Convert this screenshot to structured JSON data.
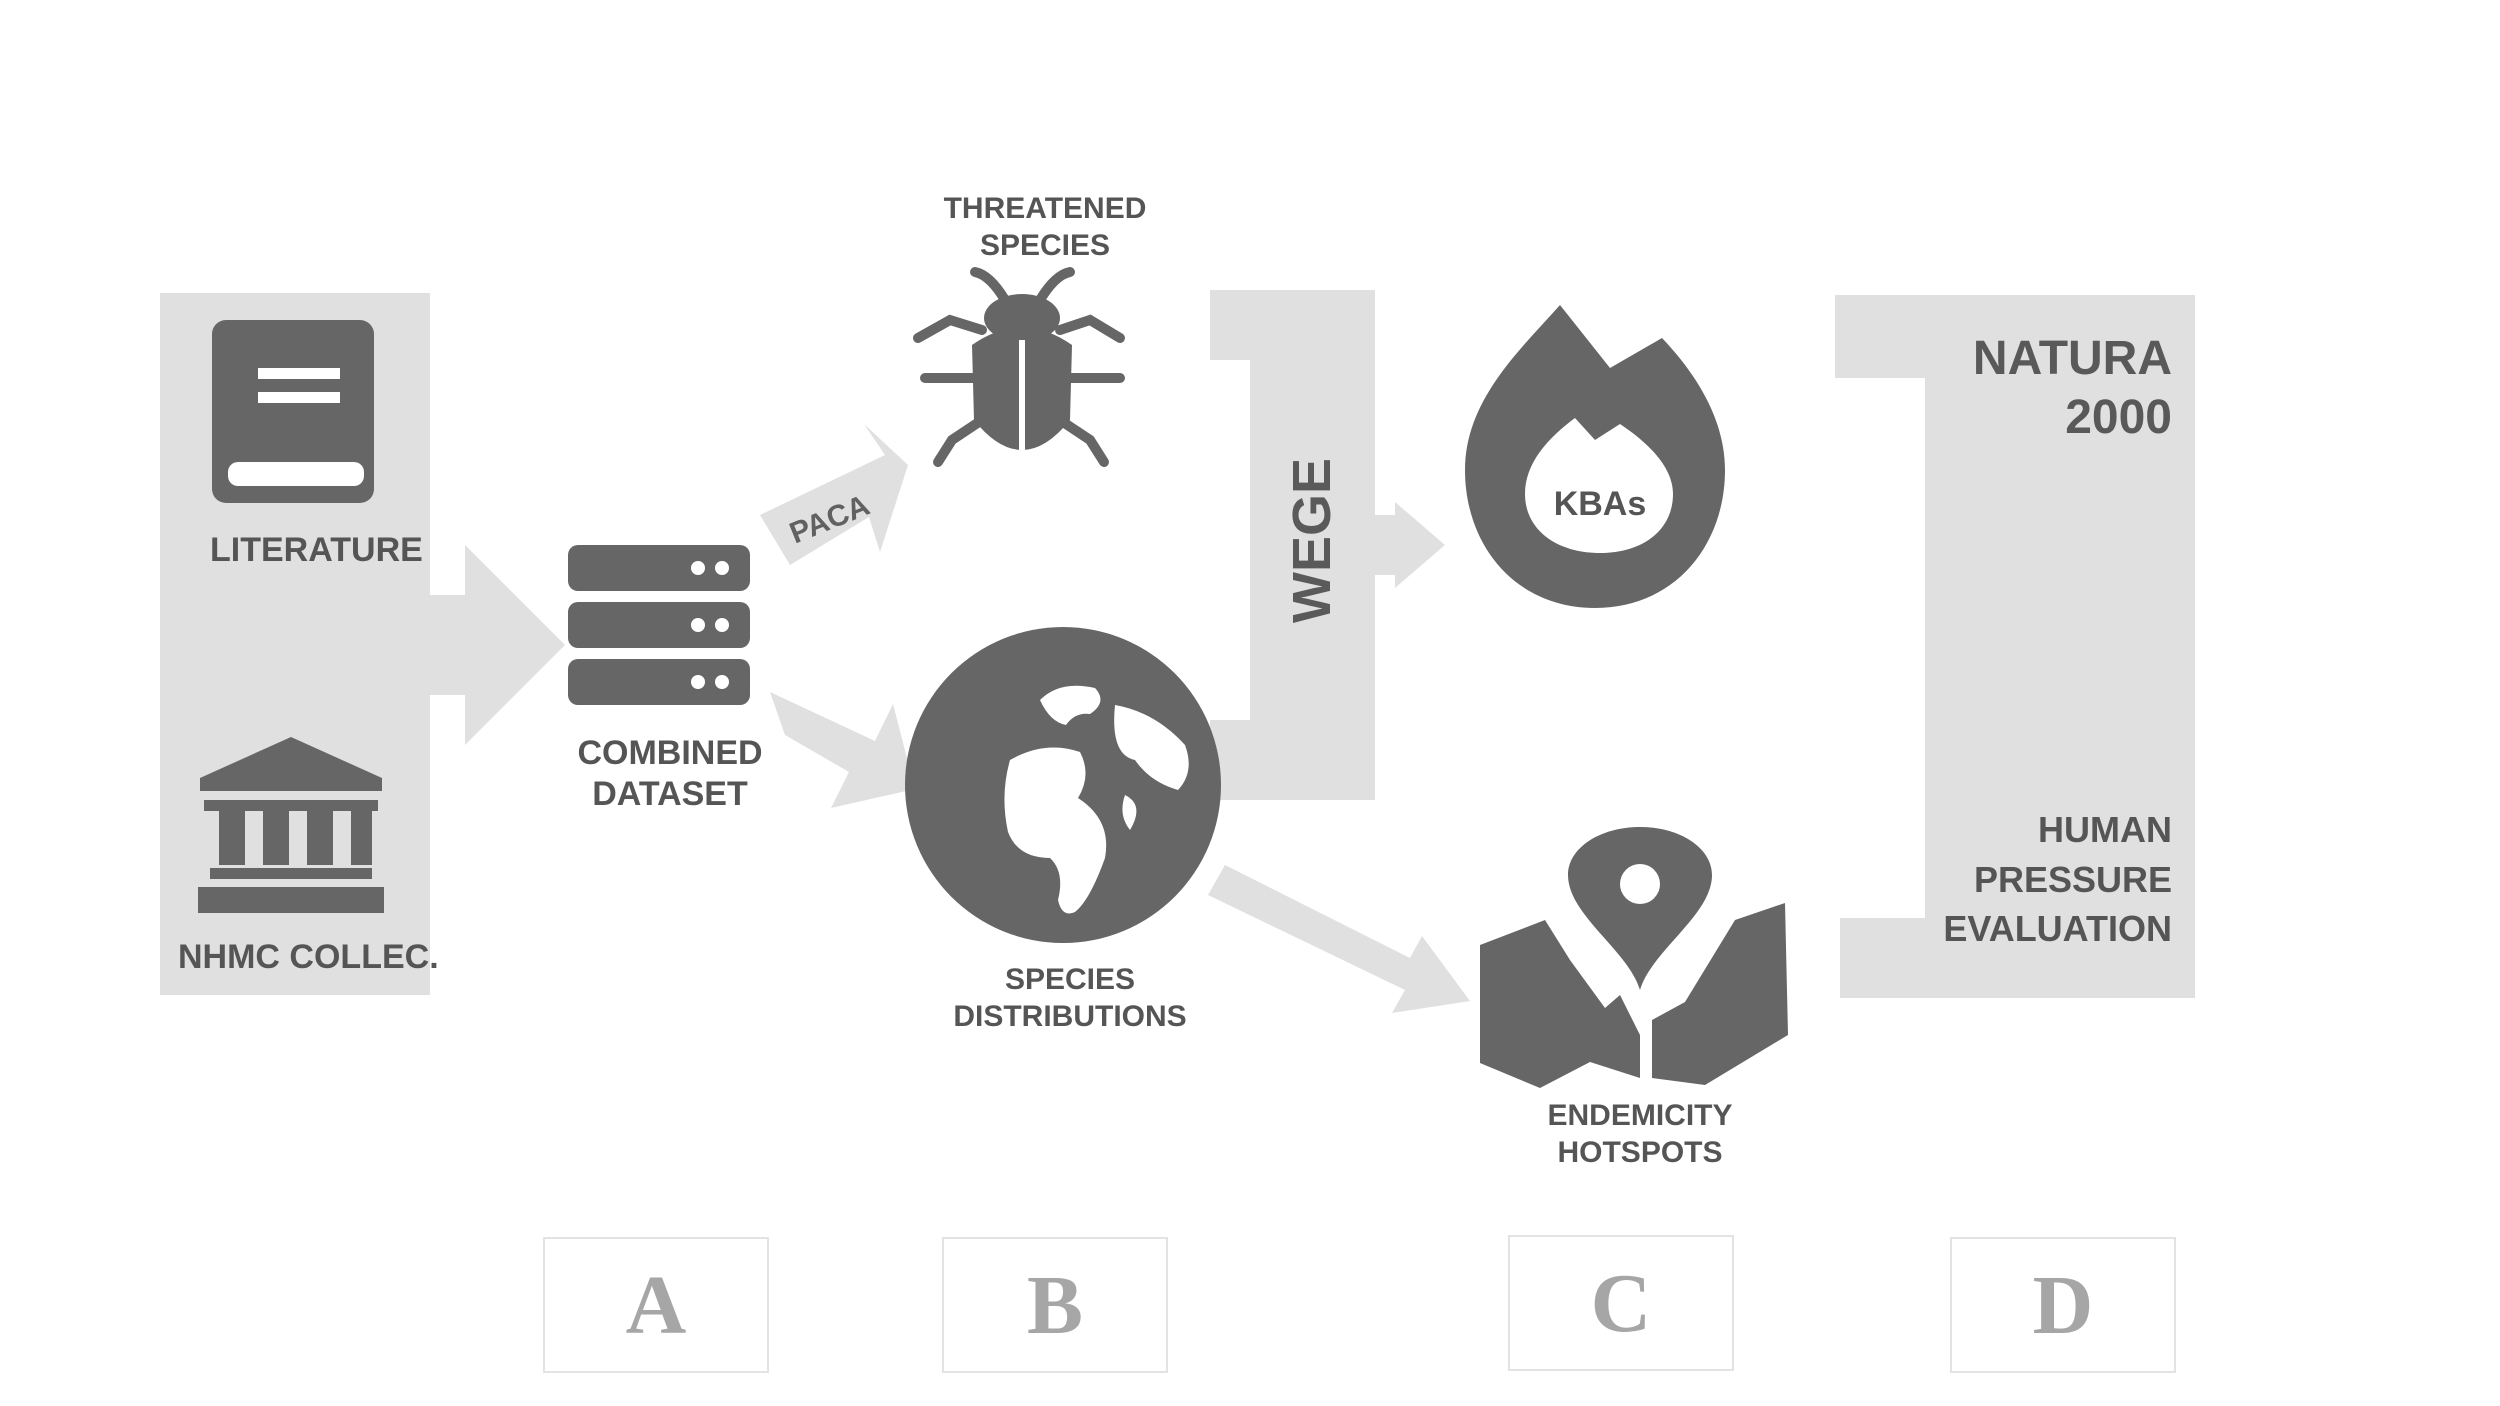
{
  "labels": {
    "literature": "LITERATURE",
    "nhmc": "NHMC COLLEC.",
    "combined": [
      "COMBINED",
      "DATASET"
    ],
    "paca": "PACA",
    "threatened": [
      "THREATENED",
      "SPECIES"
    ],
    "distributions": [
      "SPECIES",
      "DISTRIBUTIONS"
    ],
    "wege": "WEGE",
    "kbas": "KBAs",
    "endemicity": [
      "ENDEMICITY",
      "HOTSPOTS"
    ],
    "natura": [
      "NATURA",
      "2000"
    ],
    "human": [
      "HUMAN",
      "PRESSURE",
      "EVALUATION"
    ]
  },
  "steps": [
    "A",
    "B",
    "C",
    "D"
  ],
  "icons": [
    "book-icon",
    "museum-icon",
    "database-icon",
    "bug-icon",
    "globe-icon",
    "flame-icon",
    "map-pin-icon"
  ],
  "colors": {
    "icon": "#666666",
    "band": "#e0e0e0",
    "text": "#555555",
    "step_letter": "#a6a6a6"
  }
}
